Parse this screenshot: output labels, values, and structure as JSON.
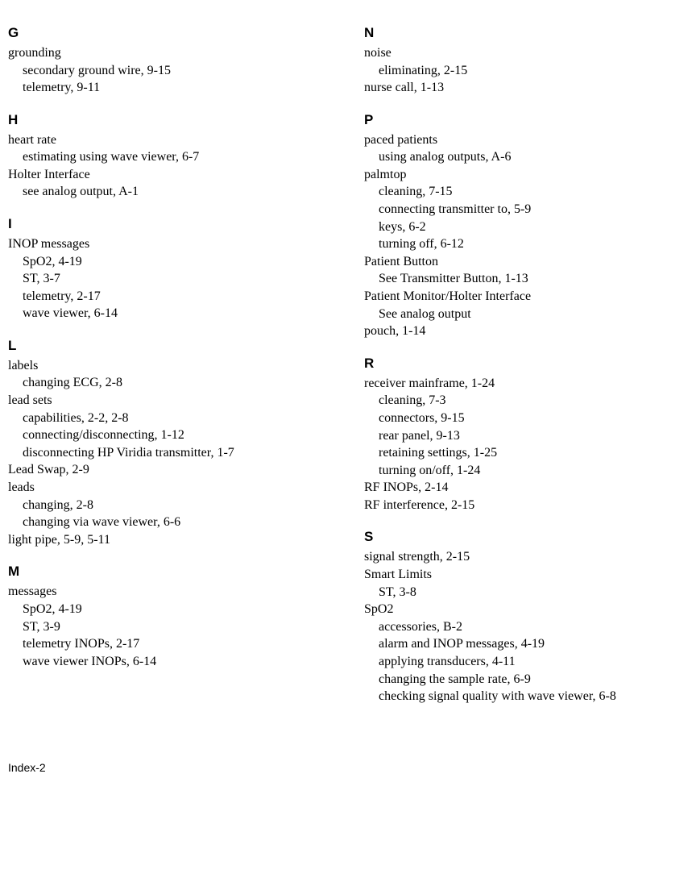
{
  "left": [
    {
      "letter": "G",
      "entries": [
        {
          "text": "grounding",
          "sub": [
            {
              "text": "secondary ground wire,  9-15"
            },
            {
              "text": "telemetry,  9-11"
            }
          ]
        }
      ]
    },
    {
      "letter": "H",
      "entries": [
        {
          "text": "heart rate",
          "sub": [
            {
              "text": "estimating using wave viewer,  6-7"
            }
          ]
        },
        {
          "text": "Holter Interface",
          "sub": [
            {
              "text": "see analog output,  A-1"
            }
          ]
        }
      ]
    },
    {
      "letter": "I",
      "entries": [
        {
          "text": "INOP messages",
          "sub": [
            {
              "text": "SpO2,  4-19"
            },
            {
              "text": "ST,  3-7"
            },
            {
              "text": "telemetry,  2-17"
            },
            {
              "text": "wave viewer,  6-14"
            }
          ]
        }
      ]
    },
    {
      "letter": "L",
      "entries": [
        {
          "text": "labels",
          "sub": [
            {
              "text": "changing ECG,  2-8"
            }
          ]
        },
        {
          "text": "lead sets",
          "sub": [
            {
              "text": "capabilities,  2-2, 2-8"
            },
            {
              "text": "connecting/disconnecting,  1-12"
            },
            {
              "text": "disconnecting HP Viridia transmitter,  1-7"
            }
          ]
        },
        {
          "text": "Lead Swap,  2-9"
        },
        {
          "text": "leads",
          "sub": [
            {
              "text": "changing,  2-8"
            },
            {
              "text": "changing via wave viewer,  6-6"
            }
          ]
        },
        {
          "text": "light pipe,  5-9, 5-11"
        }
      ]
    },
    {
      "letter": "M",
      "entries": [
        {
          "text": "messages",
          "sub": [
            {
              "text": "SpO2,  4-19"
            },
            {
              "text": "ST,  3-9"
            },
            {
              "text": "telemetry INOPs,  2-17"
            },
            {
              "text": "wave viewer INOPs,  6-14"
            }
          ]
        }
      ]
    }
  ],
  "right": [
    {
      "letter": "N",
      "entries": [
        {
          "text": "noise",
          "sub": [
            {
              "text": "eliminating,  2-15"
            }
          ]
        },
        {
          "text": "nurse call,  1-13"
        }
      ]
    },
    {
      "letter": "P",
      "entries": [
        {
          "text": "paced patients",
          "sub": [
            {
              "text": "using analog outputs,  A-6"
            }
          ]
        },
        {
          "text": "palmtop",
          "sub": [
            {
              "text": "cleaning,  7-15"
            },
            {
              "text": "connecting transmitter to,  5-9"
            },
            {
              "text": "keys,  6-2"
            },
            {
              "text": "turning off,  6-12"
            }
          ]
        },
        {
          "text": "Patient Button",
          "sub": [
            {
              "text": "See Transmitter Button,  1-13"
            }
          ]
        },
        {
          "text": "Patient Monitor/Holter Interface",
          "sub": [
            {
              "text": "See analog output"
            }
          ]
        },
        {
          "text": "pouch,  1-14"
        }
      ]
    },
    {
      "letter": "R",
      "entries": [
        {
          "text": "receiver mainframe,  1-24",
          "sub": [
            {
              "text": "cleaning,  7-3"
            },
            {
              "text": "connectors,  9-15"
            },
            {
              "text": "rear panel,  9-13"
            },
            {
              "text": "retaining settings,  1-25"
            },
            {
              "text": "turning on/off,  1-24"
            }
          ]
        },
        {
          "text": "RF INOPs,  2-14"
        },
        {
          "text": "RF interference,  2-15"
        }
      ]
    },
    {
      "letter": "S",
      "entries": [
        {
          "text": "signal strength,  2-15"
        },
        {
          "text": "Smart Limits",
          "sub": [
            {
              "text": "ST,  3-8"
            }
          ]
        },
        {
          "text": "SpO2",
          "sub": [
            {
              "text": "accessories,  B-2"
            },
            {
              "text": "alarm and INOP messages,  4-19"
            },
            {
              "text": "applying transducers,  4-11"
            },
            {
              "text": "changing the sample rate,  6-9"
            },
            {
              "text": "checking signal quality with wave viewer,  6-8"
            }
          ]
        }
      ]
    }
  ],
  "footer": "Index-2"
}
